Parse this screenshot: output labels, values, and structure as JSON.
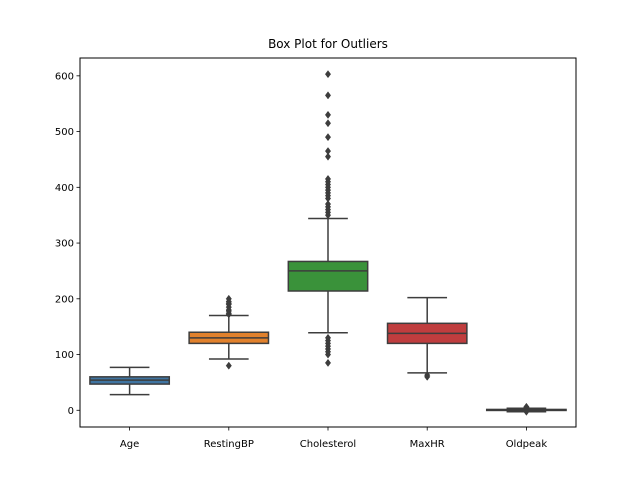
{
  "chart_data": {
    "type": "box",
    "title": "Box Plot for Outliers",
    "xlabel": "",
    "ylabel": "",
    "ylim": [
      -30,
      632
    ],
    "yticks": [
      0,
      100,
      200,
      300,
      400,
      500,
      600
    ],
    "grid": false,
    "categories": [
      "Age",
      "RestingBP",
      "Cholesterol",
      "MaxHR",
      "Oldpeak"
    ],
    "boxes": [
      {
        "name": "Age",
        "color": "#3f74a1",
        "whisker_low": 28,
        "q1": 47,
        "median": 54,
        "q3": 60,
        "whisker_high": 77,
        "outliers": []
      },
      {
        "name": "RestingBP",
        "color": "#e1812c",
        "whisker_low": 92,
        "q1": 120,
        "median": 130,
        "q3": 140,
        "whisker_high": 170,
        "outliers": [
          80,
          172,
          174,
          178,
          180,
          185,
          190,
          192,
          195,
          200
        ]
      },
      {
        "name": "Cholesterol",
        "color": "#3a923a",
        "whisker_low": 139,
        "q1": 214,
        "median": 250,
        "q3": 267,
        "whisker_high": 344,
        "outliers": [
          85,
          100,
          105,
          110,
          115,
          120,
          125,
          130,
          350,
          355,
          360,
          365,
          370,
          380,
          385,
          390,
          395,
          400,
          405,
          410,
          415,
          455,
          465,
          490,
          515,
          530,
          565,
          603
        ]
      },
      {
        "name": "MaxHR",
        "color": "#c03d3e",
        "whisker_low": 67,
        "q1": 120,
        "median": 138,
        "q3": 156,
        "whisker_high": 202,
        "outliers": [
          60,
          63
        ]
      },
      {
        "name": "Oldpeak",
        "color": "#9372b2",
        "whisker_low": -2.6,
        "q1": 0,
        "median": 0.6,
        "q3": 1.5,
        "whisker_high": 3.75,
        "outliers": [
          4,
          4.5,
          5,
          5.5,
          6.2,
          -2.6
        ]
      }
    ]
  }
}
